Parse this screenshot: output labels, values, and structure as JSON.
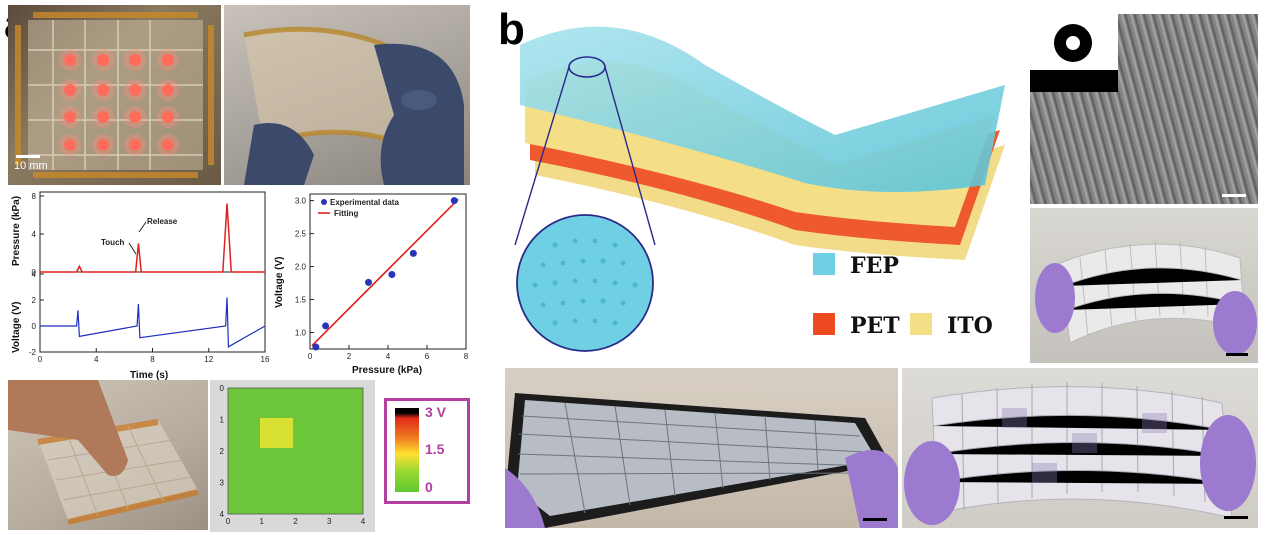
{
  "panel_a": {
    "letter": "a",
    "scale_label": "10 mm",
    "pressure_chart": {
      "ylabel_top": "Pressure (kPa)",
      "ylabel_bottom": "Voltage (V)",
      "xlabel": "Time (s)",
      "annotations": [
        "Touch",
        "Release"
      ],
      "top_ticks": [
        "8",
        "4",
        "0"
      ],
      "bottom_ticks": [
        "4",
        "2",
        "0",
        "-2"
      ],
      "x_ticks": [
        "0",
        "4",
        "8",
        "12",
        "16"
      ]
    },
    "fit_chart": {
      "xlabel": "Pressure (kPa)",
      "ylabel": "Voltage (V)",
      "legend": [
        "Experimental data",
        "Fitting"
      ],
      "y_ticks": [
        "3.0",
        "2.5",
        "2.0",
        "1.5",
        "1.0"
      ],
      "x_ticks": [
        "0",
        "2",
        "4",
        "6",
        "8"
      ]
    },
    "map": {
      "y_ticks": [
        "0",
        "1",
        "2",
        "3",
        "4"
      ],
      "x_ticks": [
        "0",
        "1",
        "2",
        "3",
        "4"
      ]
    },
    "colorbar_labels": [
      "3 V",
      "1.5",
      "0"
    ]
  },
  "panel_b": {
    "letter": "b",
    "materials": [
      "FEP",
      "PET",
      "ITO"
    ]
  },
  "chart_data": [
    {
      "type": "line",
      "xlabel": "Time (s)",
      "ylabel": "Pressure (kPa)",
      "xlim": [
        0,
        16
      ],
      "ylim": [
        0,
        8
      ],
      "x": [
        0,
        2.6,
        2.8,
        3.0,
        6.8,
        7.0,
        7.2,
        13.0,
        13.3,
        13.6,
        16
      ],
      "series": [
        {
          "values": [
            0,
            0,
            0.6,
            0,
            0,
            3.0,
            0,
            0,
            7.2,
            0,
            0
          ]
        }
      ],
      "color": "#e02020"
    },
    {
      "type": "line",
      "xlabel": "Time (s)",
      "ylabel": "Voltage (V)",
      "xlim": [
        0,
        16
      ],
      "ylim": [
        -2,
        4
      ],
      "x": [
        0,
        2.6,
        2.7,
        2.8,
        6.9,
        7.0,
        7.1,
        13.2,
        13.3,
        13.4,
        16
      ],
      "series": [
        {
          "values": [
            0,
            0,
            1.2,
            -0.8,
            0,
            1.7,
            -0.9,
            0,
            2.2,
            -1.6,
            0
          ]
        }
      ],
      "color": "#1f2fbf"
    },
    {
      "type": "scatter",
      "xlabel": "Pressure (kPa)",
      "ylabel": "Voltage (V)",
      "xlim": [
        0,
        8
      ],
      "ylim": [
        0.75,
        3.1
      ],
      "series": [
        {
          "name": "Experimental data",
          "x": [
            0.3,
            0.8,
            3.0,
            4.2,
            5.3,
            7.4
          ],
          "values": [
            0.78,
            1.1,
            1.76,
            1.88,
            2.2,
            3.0
          ]
        },
        {
          "name": "Fitting",
          "x": [
            0.1,
            7.6
          ],
          "values": [
            0.8,
            3.02
          ]
        }
      ]
    }
  ]
}
